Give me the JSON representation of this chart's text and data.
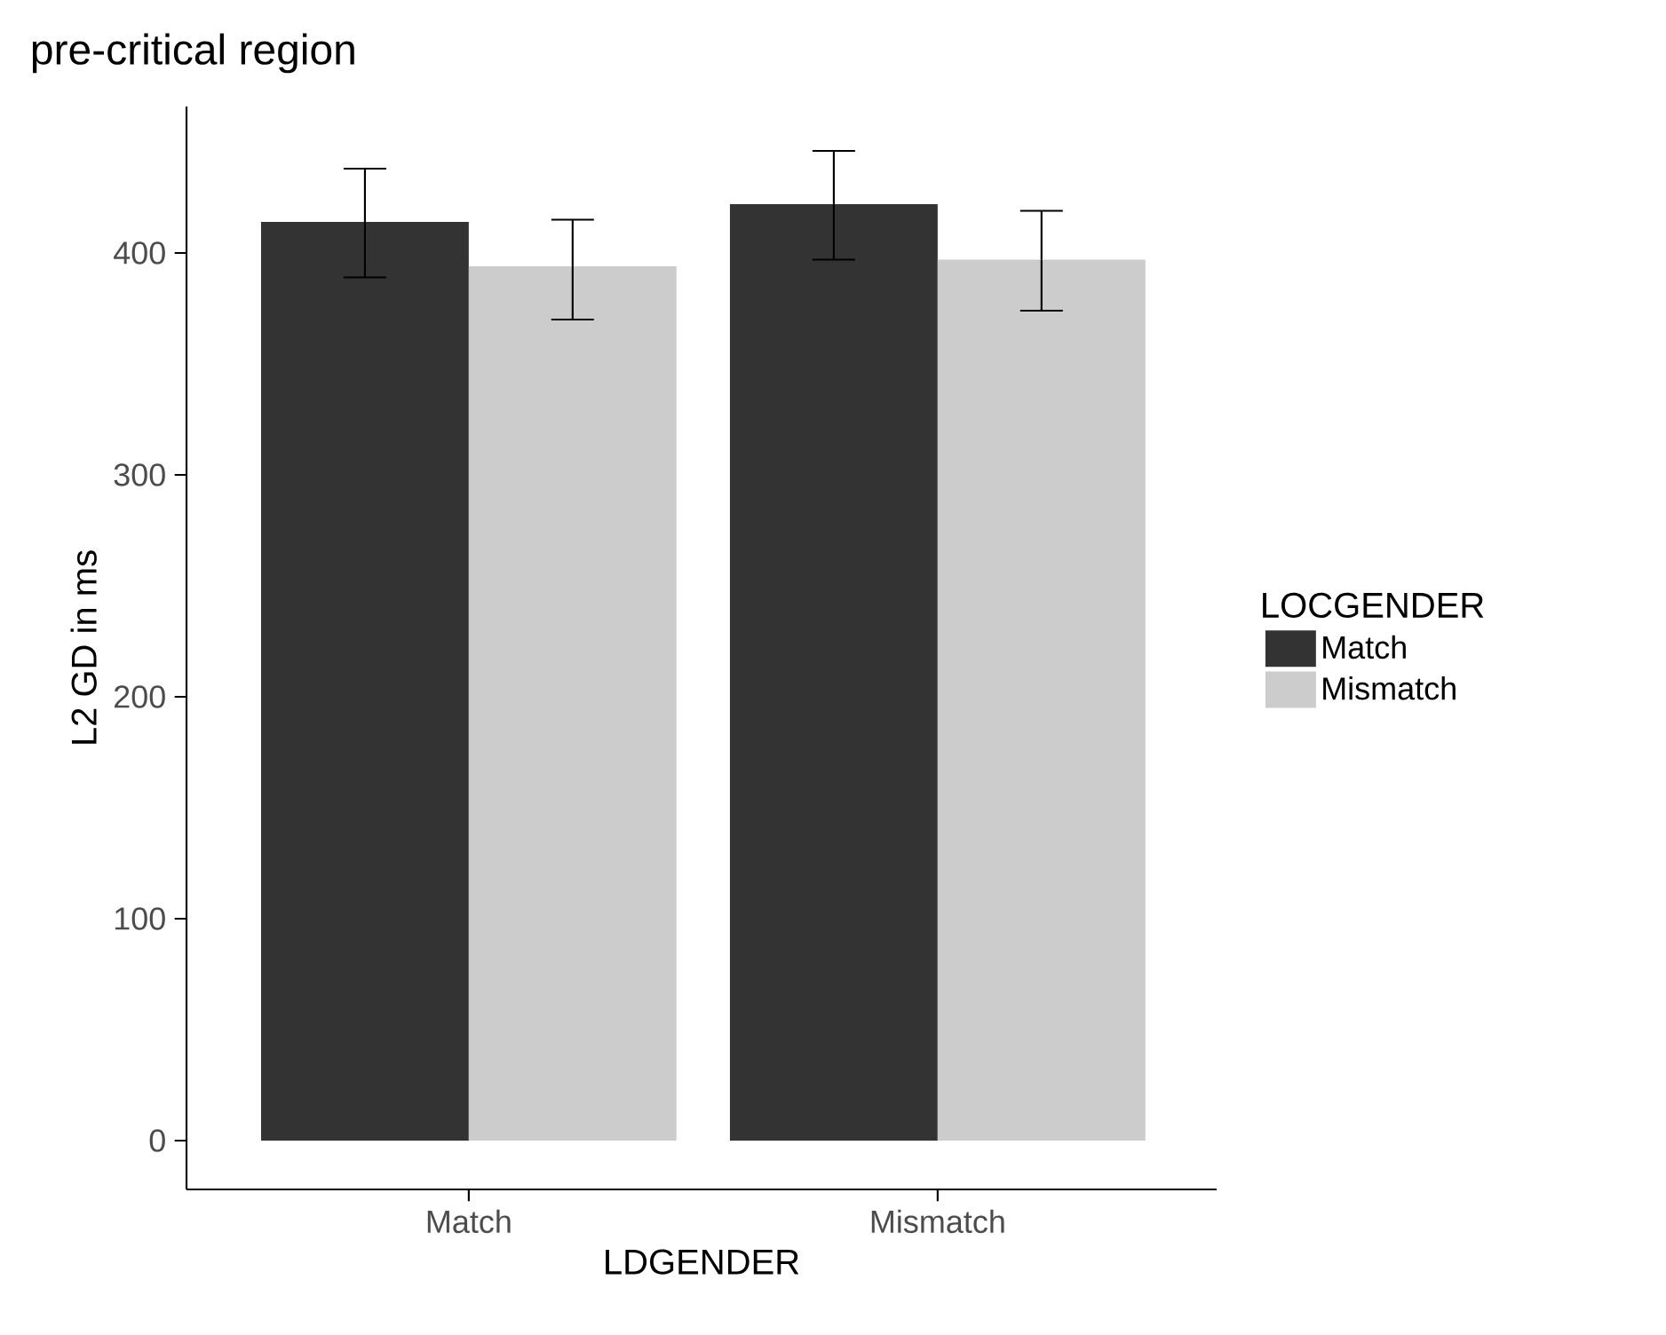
{
  "chart_data": {
    "type": "bar",
    "title": "pre-critical region",
    "xlabel": "LDGENDER",
    "ylabel": "L2 GD in ms",
    "legend_title": "LOCGENDER",
    "categories": [
      "Match",
      "Mismatch"
    ],
    "series": [
      {
        "name": "Match",
        "color": "#333333",
        "values": [
          414,
          422
        ],
        "errors": [
          [
            389,
            438
          ],
          [
            397,
            446
          ]
        ]
      },
      {
        "name": "Mismatch",
        "color": "#cccccc",
        "values": [
          394,
          397
        ],
        "errors": [
          [
            370,
            415
          ],
          [
            374,
            419
          ]
        ]
      }
    ],
    "ylim": [
      -22,
      466
    ],
    "yticks": [
      0,
      100,
      200,
      300,
      400
    ],
    "legend": "right"
  }
}
